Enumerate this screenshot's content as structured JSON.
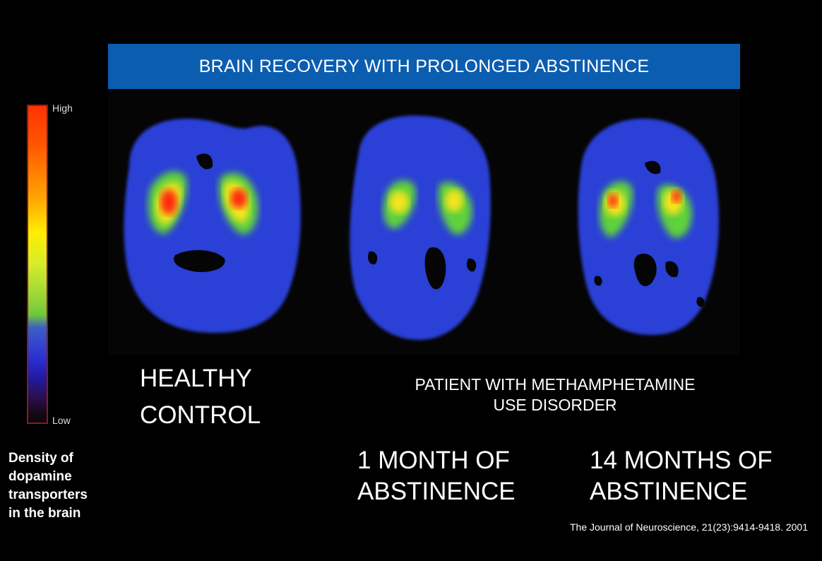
{
  "banner": {
    "title": "BRAIN RECOVERY WITH PROLONGED ABSTINENCE",
    "color": "#0b5db0"
  },
  "colorbar": {
    "high_label": "High",
    "low_label": "Low"
  },
  "legend_caption": [
    "Density of",
    "dopamine",
    "transporters",
    "in the brain"
  ],
  "healthy": {
    "line1": "HEALTHY",
    "line2": "CONTROL"
  },
  "patient": {
    "line1": "PATIENT WITH METHAMPHETAMINE",
    "line2": "USE DISORDER"
  },
  "abstinence_1": {
    "line1": "1 MONTH OF",
    "line2": "ABSTINENCE"
  },
  "abstinence_14": {
    "line1": "14 MONTHS OF",
    "line2": "ABSTINENCE"
  },
  "citation": "The Journal of Neuroscience, 21(23):9414-9418. 2001",
  "scan_colors": {
    "brain": "#2a3fd6",
    "brain_dark": "#1c26a8",
    "green": "#5ed23a",
    "yellow": "#f4e41c",
    "orange": "#ff8a1a",
    "red": "#ff2a10"
  }
}
